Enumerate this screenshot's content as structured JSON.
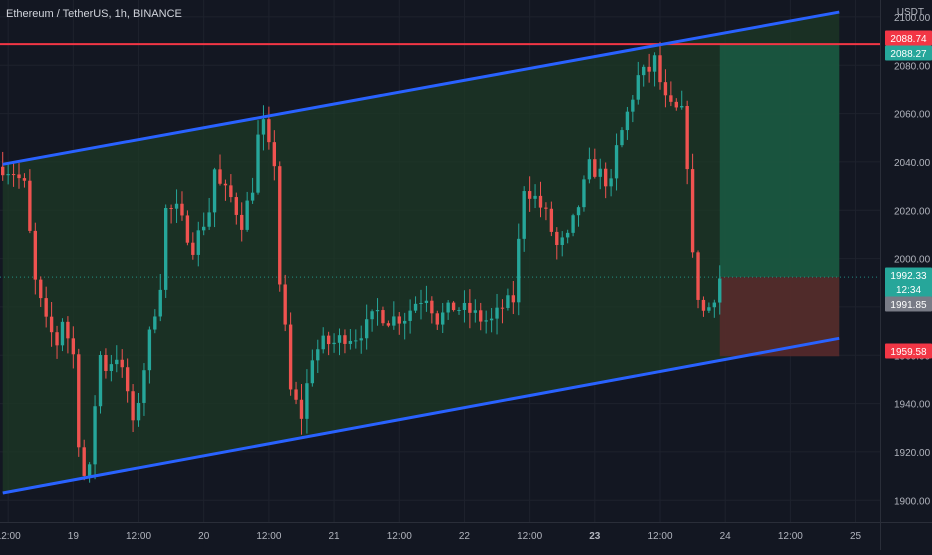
{
  "header": {
    "title": "Ethereum / TetherUS, 1h, BINANCE",
    "currency": "USDT"
  },
  "chart_data": {
    "type": "candlestick",
    "title": "Ethereum / TetherUS, 1h, BINANCE",
    "y_axis_unit": "USDT",
    "ylim": [
      1891,
      2107
    ],
    "y_ticks": [
      "1900.00",
      "1920.00",
      "1940.00",
      "1960.00",
      "1980.00",
      "2000.00",
      "2020.00",
      "2040.00",
      "2060.00",
      "2080.00",
      "2100.00"
    ],
    "x_ticks": [
      "12:00",
      "19",
      "12:00",
      "20",
      "12:00",
      "21",
      "12:00",
      "22",
      "12:00",
      "23",
      "12:00",
      "24",
      "12:00",
      "25"
    ],
    "x_tick_values_hours": [
      -36,
      -24,
      -12,
      0,
      12,
      24,
      36,
      48,
      60,
      72,
      84,
      96,
      108,
      120
    ],
    "x_range_hours": [
      -37.5,
      124.5
    ],
    "candle_hours": [
      -37,
      95
    ],
    "colors": {
      "up": "#26a69a",
      "down": "#ef5350",
      "background": "#131722",
      "channel_line": "#2962ff",
      "channel_fill": "#1e3a26",
      "resistance": "#f23645",
      "profit_zone": "#1a5a43",
      "loss_zone": "#5a2a2c"
    },
    "price_markers": [
      {
        "value": "2088.74",
        "color": "#f23645"
      },
      {
        "value": "2088.27",
        "color": "#26a69a"
      },
      {
        "value": "1992.33",
        "time": "12:34",
        "color": "#26a69a"
      },
      {
        "value": "1991.85",
        "color": "#787b86"
      },
      {
        "value": "1959.58",
        "color": "#f23645"
      }
    ],
    "resistance_level": 2088.74,
    "current_price": 1992.33,
    "channel": {
      "upper": [
        {
          "x": -37,
          "y": 2039
        },
        {
          "x": 117,
          "y": 2102
        }
      ],
      "lower": [
        {
          "x": -37,
          "y": 1903
        },
        {
          "x": 117,
          "y": 1967
        }
      ]
    },
    "position": {
      "x_start": 95,
      "x_end": 117,
      "entry": 1992.33,
      "target": 2088.74,
      "stop": 1959.58
    },
    "path": [
      {
        "x": -37,
        "y": 2038
      },
      {
        "x": -35,
        "y": 2036
      },
      {
        "x": -33,
        "y": 2030
      },
      {
        "x": -31,
        "y": 1990
      },
      {
        "x": -29,
        "y": 1973
      },
      {
        "x": -27,
        "y": 1965
      },
      {
        "x": -26,
        "y": 1975
      },
      {
        "x": -24,
        "y": 1960
      },
      {
        "x": -23,
        "y": 1925
      },
      {
        "x": -22,
        "y": 1910
      },
      {
        "x": -21,
        "y": 1912
      },
      {
        "x": -20,
        "y": 1940
      },
      {
        "x": -19,
        "y": 1960
      },
      {
        "x": -18,
        "y": 1955
      },
      {
        "x": -16,
        "y": 1960
      },
      {
        "x": -14,
        "y": 1945
      },
      {
        "x": -13,
        "y": 1930
      },
      {
        "x": -12,
        "y": 1942
      },
      {
        "x": -10,
        "y": 1968
      },
      {
        "x": -8,
        "y": 1990
      },
      {
        "x": -7,
        "y": 2020
      },
      {
        "x": -5,
        "y": 2020
      },
      {
        "x": -2,
        "y": 2005
      },
      {
        "x": 1,
        "y": 2020
      },
      {
        "x": 2,
        "y": 2037
      },
      {
        "x": 3,
        "y": 2030
      },
      {
        "x": 5,
        "y": 2025
      },
      {
        "x": 7,
        "y": 2015
      },
      {
        "x": 9,
        "y": 2030
      },
      {
        "x": 10,
        "y": 2050
      },
      {
        "x": 11,
        "y": 2055
      },
      {
        "x": 12,
        "y": 2045
      },
      {
        "x": 13,
        "y": 2040
      },
      {
        "x": 14,
        "y": 1990
      },
      {
        "x": 15,
        "y": 1970
      },
      {
        "x": 16,
        "y": 1945
      },
      {
        "x": 18,
        "y": 1935
      },
      {
        "x": 20,
        "y": 1960
      },
      {
        "x": 22,
        "y": 1965
      },
      {
        "x": 24,
        "y": 1965
      },
      {
        "x": 26,
        "y": 1968
      },
      {
        "x": 28,
        "y": 1968
      },
      {
        "x": 30,
        "y": 1972
      },
      {
        "x": 32,
        "y": 1978
      },
      {
        "x": 34,
        "y": 1975
      },
      {
        "x": 37,
        "y": 1976
      },
      {
        "x": 39,
        "y": 1982
      },
      {
        "x": 41,
        "y": 1985
      },
      {
        "x": 43,
        "y": 1975
      },
      {
        "x": 46,
        "y": 1980
      },
      {
        "x": 49,
        "y": 1978
      },
      {
        "x": 51,
        "y": 1975
      },
      {
        "x": 53,
        "y": 1974
      },
      {
        "x": 55,
        "y": 1980
      },
      {
        "x": 57,
        "y": 1983
      },
      {
        "x": 59,
        "y": 2030
      },
      {
        "x": 61,
        "y": 2025
      },
      {
        "x": 63,
        "y": 2018
      },
      {
        "x": 65,
        "y": 2005
      },
      {
        "x": 67,
        "y": 2008
      },
      {
        "x": 69,
        "y": 2022
      },
      {
        "x": 71,
        "y": 2038
      },
      {
        "x": 73,
        "y": 2035
      },
      {
        "x": 75,
        "y": 2030
      },
      {
        "x": 76,
        "y": 2045
      },
      {
        "x": 78,
        "y": 2060
      },
      {
        "x": 80,
        "y": 2075
      },
      {
        "x": 82,
        "y": 2078
      },
      {
        "x": 83,
        "y": 2082
      },
      {
        "x": 84,
        "y": 2073
      },
      {
        "x": 85,
        "y": 2065
      },
      {
        "x": 86,
        "y": 2062
      },
      {
        "x": 88,
        "y": 2060
      },
      {
        "x": 89,
        "y": 2040
      },
      {
        "x": 90,
        "y": 2000
      },
      {
        "x": 91,
        "y": 1985
      },
      {
        "x": 92,
        "y": 1978
      },
      {
        "x": 93,
        "y": 1980
      },
      {
        "x": 94,
        "y": 1985
      },
      {
        "x": 95,
        "y": 1992
      }
    ]
  }
}
